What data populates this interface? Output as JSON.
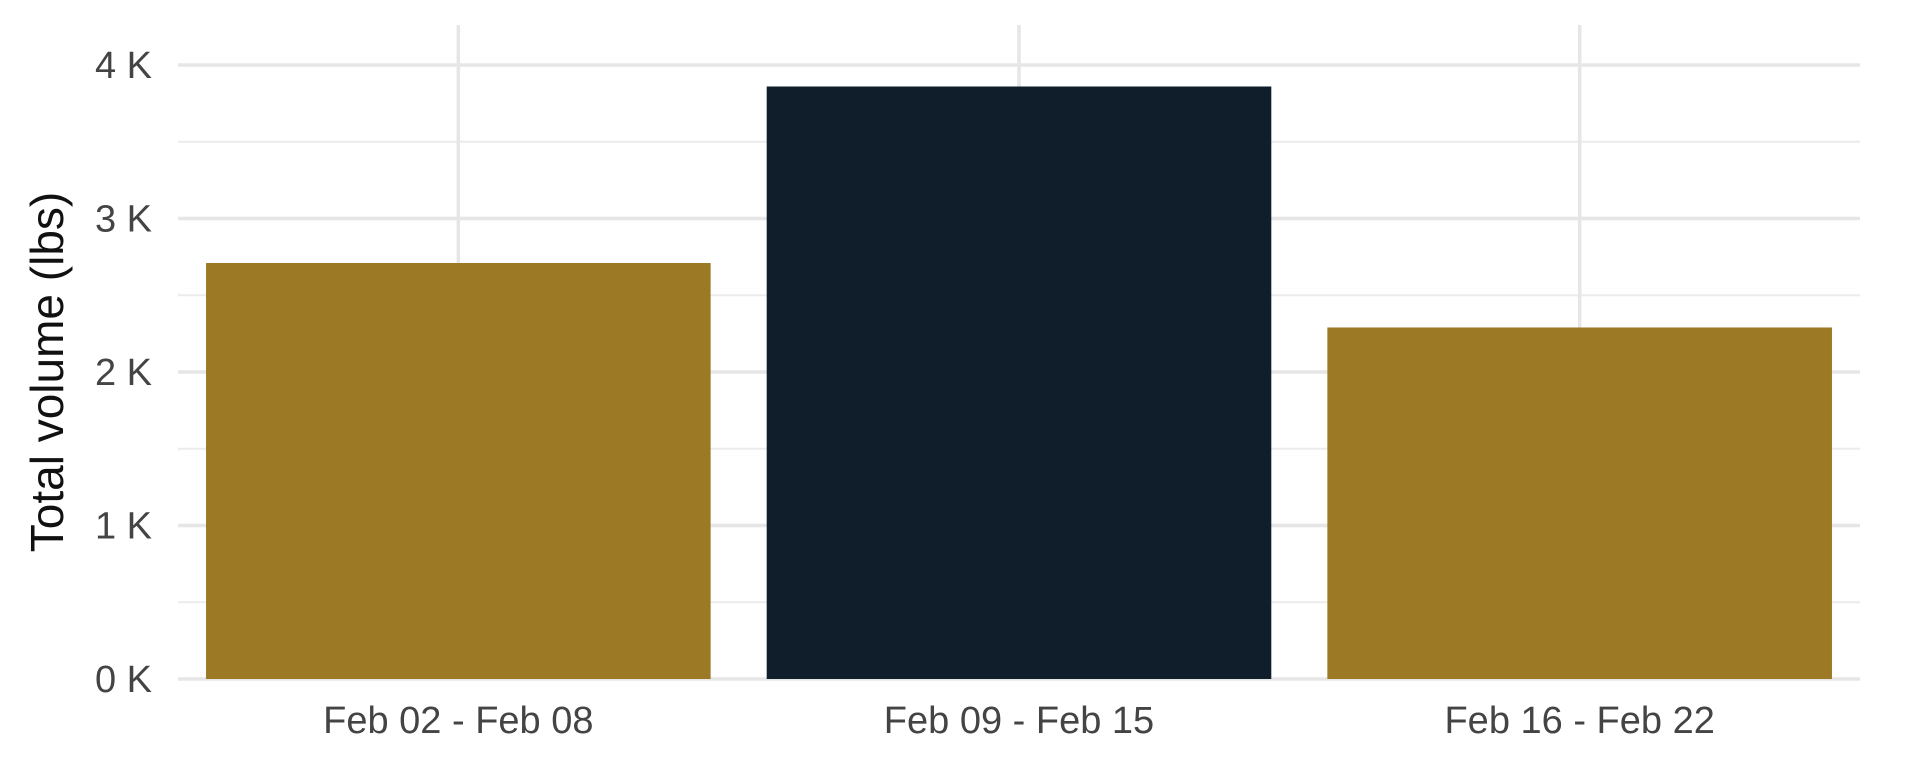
{
  "chart_data": {
    "type": "bar",
    "title": "",
    "xlabel": "",
    "ylabel": "Total volume (lbs)",
    "categories": [
      "Feb 02 - Feb 08",
      "Feb 09 - Feb 15",
      "Feb 16 - Feb 22"
    ],
    "values": [
      2710,
      3860,
      2290
    ],
    "ylim": [
      0,
      4000
    ],
    "yticks": [
      0,
      1000,
      2000,
      3000,
      4000
    ],
    "ytick_labels": [
      "0 K",
      "1 K",
      "2 K",
      "3 K",
      "4 K"
    ],
    "grid": true,
    "legend": "none",
    "colors": {
      "bars": [
        "#9c7925",
        "#101d2b",
        "#9c7925"
      ]
    }
  }
}
